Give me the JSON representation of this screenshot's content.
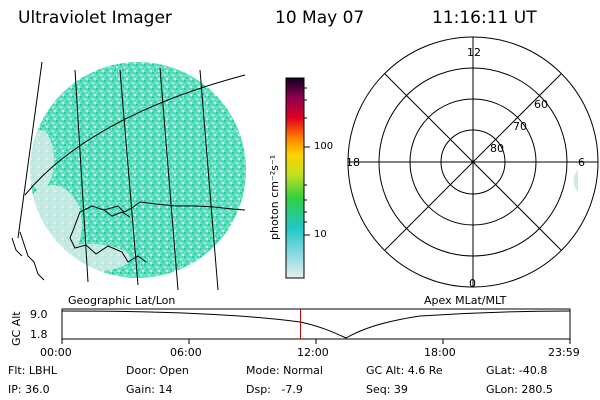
{
  "header": {
    "instrument": "Ultraviolet Imager",
    "date": "10 May 07",
    "time": "11:16:11 UT"
  },
  "image_panel": {
    "projection_label": "Geographic Lat/Lon"
  },
  "colorbar": {
    "unit_label": "photon cm⁻²s⁻¹",
    "ticks": [
      "100",
      "10"
    ]
  },
  "polar_plot": {
    "projection_label": "Apex MLat/MLT",
    "mlt_labels": {
      "top": "12",
      "left": "18",
      "right": "6",
      "bottom": "0"
    },
    "mlat_labels": [
      "60",
      "70",
      "80"
    ]
  },
  "timeline": {
    "ylabel": "GC Alt",
    "y_ticks": [
      "9.0",
      "1.8"
    ],
    "x_ticks": [
      "00:00",
      "06:00",
      "12:00",
      "18:00",
      "23:59"
    ],
    "current_time_hours": 11.27
  },
  "status": {
    "filter": "Flt: LBHL",
    "door": "Door: Open",
    "mode": "Mode: Normal",
    "gc_alt": "GC Alt: 4.6 Re",
    "glat": "GLat: -40.8",
    "ip": "IP: 36.0",
    "gain": "Gain: 14",
    "dsp": "Dsp:   -7.9",
    "seq": "Seq: 39",
    "glon": "GLon: 280.5"
  },
  "colors": {
    "accent_line": "#c00000"
  }
}
